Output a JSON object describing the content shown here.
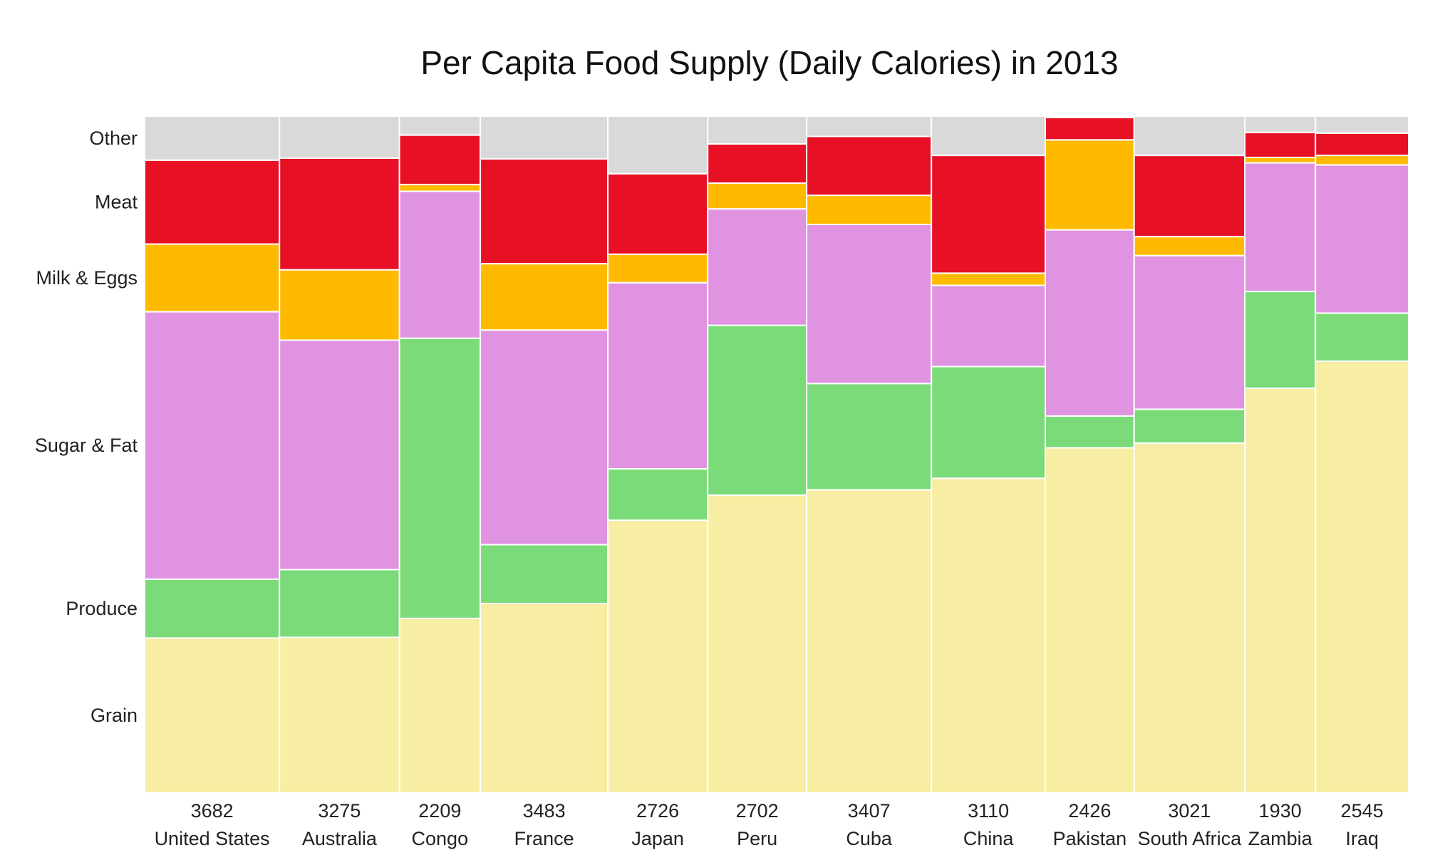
{
  "chart_data": {
    "type": "mosaic",
    "title": "Per Capita Food Supply (Daily Calories) in 2013",
    "categories": [
      "Grain",
      "Produce",
      "Sugar & Fat",
      "Milk & Eggs",
      "Meat",
      "Other"
    ],
    "category_colors": {
      "Grain": "#f7eea3",
      "Produce": "#7bdb79",
      "Sugar & Fat": "#df93e0",
      "Milk & Eggs": "#ffba00",
      "Meat": "#e71024",
      "Other": "#d9d9d9"
    },
    "countries": [
      {
        "name": "United States",
        "total": "3682",
        "shares": {
          "Grain": 0.229,
          "Produce": 0.087,
          "Sugar & Fat": 0.395,
          "Milk & Eggs": 0.1,
          "Meat": 0.124,
          "Other": 0.065
        }
      },
      {
        "name": "Australia",
        "total": "3275",
        "shares": {
          "Grain": 0.23,
          "Produce": 0.1,
          "Sugar & Fat": 0.339,
          "Milk & Eggs": 0.104,
          "Meat": 0.165,
          "Other": 0.062
        }
      },
      {
        "name": "Congo",
        "total": "2209",
        "shares": {
          "Grain": 0.258,
          "Produce": 0.414,
          "Sugar & Fat": 0.217,
          "Milk & Eggs": 0.01,
          "Meat": 0.073,
          "Other": 0.028
        }
      },
      {
        "name": "France",
        "total": "3483",
        "shares": {
          "Grain": 0.28,
          "Produce": 0.087,
          "Sugar & Fat": 0.317,
          "Milk & Eggs": 0.098,
          "Meat": 0.155,
          "Other": 0.063
        }
      },
      {
        "name": "Japan",
        "total": "2726",
        "shares": {
          "Grain": 0.403,
          "Produce": 0.076,
          "Sugar & Fat": 0.275,
          "Milk & Eggs": 0.042,
          "Meat": 0.119,
          "Other": 0.085
        }
      },
      {
        "name": "Peru",
        "total": "2702",
        "shares": {
          "Grain": 0.44,
          "Produce": 0.251,
          "Sugar & Fat": 0.172,
          "Milk & Eggs": 0.038,
          "Meat": 0.058,
          "Other": 0.041
        }
      },
      {
        "name": "Cuba",
        "total": "3407",
        "shares": {
          "Grain": 0.448,
          "Produce": 0.157,
          "Sugar & Fat": 0.235,
          "Milk & Eggs": 0.043,
          "Meat": 0.087,
          "Other": 0.03
        }
      },
      {
        "name": "China",
        "total": "3110",
        "shares": {
          "Grain": 0.465,
          "Produce": 0.165,
          "Sugar & Fat": 0.12,
          "Milk & Eggs": 0.018,
          "Meat": 0.174,
          "Other": 0.058
        }
      },
      {
        "name": "Pakistan",
        "total": "2426",
        "shares": {
          "Grain": 0.51,
          "Produce": 0.047,
          "Sugar & Fat": 0.275,
          "Milk & Eggs": 0.133,
          "Meat": 0.033,
          "Other": 0.002
        }
      },
      {
        "name": "South Africa",
        "total": "3021",
        "shares": {
          "Grain": 0.517,
          "Produce": 0.05,
          "Sugar & Fat": 0.227,
          "Milk & Eggs": 0.028,
          "Meat": 0.12,
          "Other": 0.058
        }
      },
      {
        "name": "Zambia",
        "total": "1930",
        "shares": {
          "Grain": 0.598,
          "Produce": 0.143,
          "Sugar & Fat": 0.19,
          "Milk & Eggs": 0.008,
          "Meat": 0.037,
          "Other": 0.024
        }
      },
      {
        "name": "Iraq",
        "total": "2545",
        "shares": {
          "Grain": 0.638,
          "Produce": 0.071,
          "Sugar & Fat": 0.219,
          "Milk & Eggs": 0.014,
          "Meat": 0.033,
          "Other": 0.025
        }
      }
    ]
  }
}
